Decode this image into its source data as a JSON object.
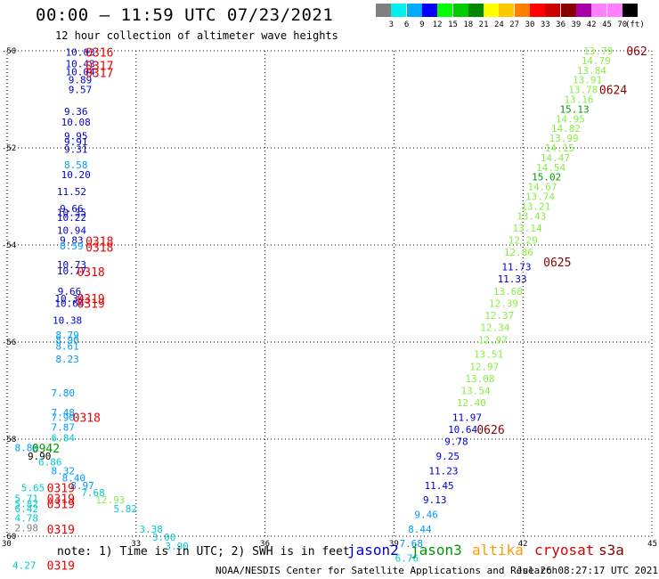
{
  "header": {
    "title": "00:00 – 11:59 UTC 07/23/2021",
    "subtitle": "12 hour collection of altimeter wave heights"
  },
  "colorbar": {
    "unit": "(ft)",
    "labels": [
      "3",
      "6",
      "9",
      "12",
      "15",
      "18",
      "21",
      "24",
      "27",
      "30",
      "33",
      "36",
      "39",
      "42",
      "45",
      "70"
    ],
    "colors": [
      "#808080",
      "#00f0f0",
      "#00aaff",
      "#0000ff",
      "#00ff00",
      "#00cc00",
      "#008800",
      "#ffff00",
      "#ffc800",
      "#ff8000",
      "#ff0000",
      "#cc0000",
      "#880000",
      "#aa00aa",
      "#ff80ff",
      "#ff80ff",
      "#000000"
    ]
  },
  "footer": {
    "note": "note: 1) Time is in UTC; 2) SWH is in feet",
    "credit": "NOAA/NESDIS Center for Satellite Applications and Research",
    "timestamp": "Jul 26 08:27:17 UTC 2021"
  },
  "satellites": [
    {
      "name": "jason2",
      "color": "#0000cc"
    },
    {
      "name": "jason3",
      "color": "#009900"
    },
    {
      "name": "altika",
      "color": "#ff9900"
    },
    {
      "name": "cryosat",
      "color": "#dd0000"
    },
    {
      "name": "s3a",
      "color": "#880000"
    }
  ],
  "chart_data": {
    "type": "scatter",
    "title": "00:00 – 11:59 UTC 07/23/2021",
    "xlim": [
      30,
      45
    ],
    "ylim": [
      -60,
      -50
    ],
    "x_ticks": [
      "30",
      "33",
      "36",
      "39",
      "42",
      "45"
    ],
    "y_ticks": [
      "-50",
      "-52",
      "-54",
      "-56",
      "-58",
      "-60"
    ],
    "grid": true,
    "legend_placement": "bottom",
    "value_labels": [
      {
        "x": 31.7,
        "y": -50.03,
        "t": "10.03",
        "c": "#0000cc"
      },
      {
        "x": 31.7,
        "y": -50.27,
        "t": "10.43",
        "c": "#0000cc"
      },
      {
        "x": 31.7,
        "y": -50.43,
        "t": "10.04",
        "c": "#0000cc"
      },
      {
        "x": 31.7,
        "y": -50.6,
        "t": "9.89",
        "c": "#0000cc"
      },
      {
        "x": 31.7,
        "y": -50.8,
        "t": "9.57",
        "c": "#0000cc"
      },
      {
        "x": 31.6,
        "y": -51.25,
        "t": "9.36",
        "c": "#0000cc"
      },
      {
        "x": 31.6,
        "y": -51.47,
        "t": "10.08",
        "c": "#0000cc"
      },
      {
        "x": 31.6,
        "y": -51.75,
        "t": "9.95",
        "c": "#0000cc"
      },
      {
        "x": 31.6,
        "y": -51.87,
        "t": "9.91",
        "c": "#0000cc"
      },
      {
        "x": 31.6,
        "y": -52.03,
        "t": "9.31",
        "c": "#0000cc"
      },
      {
        "x": 31.6,
        "y": -52.35,
        "t": "8.58",
        "c": "#0099ff"
      },
      {
        "x": 31.6,
        "y": -52.55,
        "t": "10.20",
        "c": "#0000cc"
      },
      {
        "x": 31.5,
        "y": -52.9,
        "t": "11.52",
        "c": "#0000cc"
      },
      {
        "x": 31.5,
        "y": -53.25,
        "t": "9.66",
        "c": "#0000cc"
      },
      {
        "x": 31.5,
        "y": -53.33,
        "t": "10.35",
        "c": "#0000cc"
      },
      {
        "x": 31.5,
        "y": -53.43,
        "t": "10.22",
        "c": "#0000cc"
      },
      {
        "x": 31.5,
        "y": -53.7,
        "t": "10.94",
        "c": "#0000cc"
      },
      {
        "x": 31.5,
        "y": -53.9,
        "t": "9.83",
        "c": "#0000cc"
      },
      {
        "x": 31.5,
        "y": -54.02,
        "t": "8.59",
        "c": "#0099ff"
      },
      {
        "x": 31.5,
        "y": -54.4,
        "t": "10.73",
        "c": "#0000cc"
      },
      {
        "x": 31.5,
        "y": -54.53,
        "t": "10.77",
        "c": "#0000cc"
      },
      {
        "x": 31.45,
        "y": -54.95,
        "t": "9.66",
        "c": "#0000cc"
      },
      {
        "x": 31.45,
        "y": -55.1,
        "t": "10.34",
        "c": "#0000cc"
      },
      {
        "x": 31.45,
        "y": -55.2,
        "t": "10.64",
        "c": "#0000cc"
      },
      {
        "x": 31.4,
        "y": -55.55,
        "t": "10.38",
        "c": "#0000cc"
      },
      {
        "x": 31.4,
        "y": -55.85,
        "t": "8.79",
        "c": "#0099ff"
      },
      {
        "x": 31.4,
        "y": -55.95,
        "t": "8.90",
        "c": "#0099ff"
      },
      {
        "x": 31.4,
        "y": -56.08,
        "t": "8.61",
        "c": "#0099ff"
      },
      {
        "x": 31.4,
        "y": -56.35,
        "t": "8.23",
        "c": "#0099ff"
      },
      {
        "x": 31.3,
        "y": -57.05,
        "t": "7.80",
        "c": "#0099ff"
      },
      {
        "x": 31.3,
        "y": -57.45,
        "t": "7.48",
        "c": "#0099ff"
      },
      {
        "x": 31.3,
        "y": -57.55,
        "t": "7.90",
        "c": "#0099ff"
      },
      {
        "x": 31.3,
        "y": -57.75,
        "t": "7.87",
        "c": "#0099ff"
      },
      {
        "x": 31.3,
        "y": -57.97,
        "t": "6.84",
        "c": "#00cccc"
      },
      {
        "x": 30.45,
        "y": -58.17,
        "t": "8.86",
        "c": "#0099ff"
      },
      {
        "x": 30.75,
        "y": -58.35,
        "t": "9.90",
        "c": "#000000"
      },
      {
        "x": 31.0,
        "y": -58.47,
        "t": "6.86",
        "c": "#00cccc"
      },
      {
        "x": 31.3,
        "y": -58.65,
        "t": "8.32",
        "c": "#0099ff"
      },
      {
        "x": 31.55,
        "y": -58.8,
        "t": "8.40",
        "c": "#0099ff"
      },
      {
        "x": 31.75,
        "y": -58.95,
        "t": "8.97",
        "c": "#0099ff"
      },
      {
        "x": 32.0,
        "y": -59.1,
        "t": "7.68",
        "c": "#00cccc"
      },
      {
        "x": 30.6,
        "y": -59.0,
        "t": "5.65",
        "c": "#00cccc"
      },
      {
        "x": 30.45,
        "y": -59.22,
        "t": "5.71",
        "c": "#00cccc"
      },
      {
        "x": 30.45,
        "y": -59.33,
        "t": "5.82",
        "c": "#00cccc"
      },
      {
        "x": 30.45,
        "y": -59.43,
        "t": "6.42",
        "c": "#00cccc"
      },
      {
        "x": 30.45,
        "y": -59.62,
        "t": "4.78",
        "c": "#00cccc"
      },
      {
        "x": 30.45,
        "y": -59.83,
        "t": "2.98",
        "c": "#808080"
      },
      {
        "x": 30.4,
        "y": -60.6,
        "t": "4.27",
        "c": "#00cccc"
      },
      {
        "x": 32.4,
        "y": -59.25,
        "t": "12.93",
        "c": "#88ee44"
      },
      {
        "x": 32.75,
        "y": -59.43,
        "t": "5.82",
        "c": "#00cccc"
      },
      {
        "x": 33.35,
        "y": -59.85,
        "t": "3.38",
        "c": "#00cccc"
      },
      {
        "x": 33.65,
        "y": -60.02,
        "t": "3.00",
        "c": "#00cccc"
      },
      {
        "x": 33.95,
        "y": -60.2,
        "t": "3.90",
        "c": "#00cccc"
      },
      {
        "x": 43.75,
        "y": -50.0,
        "t": "13.79",
        "c": "#88ee44"
      },
      {
        "x": 43.7,
        "y": -50.2,
        "t": "14.79",
        "c": "#88ee44"
      },
      {
        "x": 43.6,
        "y": -50.4,
        "t": "13.84",
        "c": "#88ee44"
      },
      {
        "x": 43.5,
        "y": -50.6,
        "t": "13.91",
        "c": "#88ee44"
      },
      {
        "x": 43.4,
        "y": -50.8,
        "t": "13.78",
        "c": "#88ee44"
      },
      {
        "x": 43.3,
        "y": -51.0,
        "t": "13.16",
        "c": "#88ee44"
      },
      {
        "x": 43.2,
        "y": -51.2,
        "t": "15.13",
        "c": "#009900"
      },
      {
        "x": 43.1,
        "y": -51.4,
        "t": "14.95",
        "c": "#88ee44"
      },
      {
        "x": 43.0,
        "y": -51.6,
        "t": "14.82",
        "c": "#88ee44"
      },
      {
        "x": 42.95,
        "y": -51.8,
        "t": "13.99",
        "c": "#88ee44"
      },
      {
        "x": 42.85,
        "y": -52.0,
        "t": "14.15",
        "c": "#88ee44"
      },
      {
        "x": 42.75,
        "y": -52.2,
        "t": "14.47",
        "c": "#88ee44"
      },
      {
        "x": 42.65,
        "y": -52.4,
        "t": "14.54",
        "c": "#88ee44"
      },
      {
        "x": 42.55,
        "y": -52.6,
        "t": "15.02",
        "c": "#009900"
      },
      {
        "x": 42.45,
        "y": -52.8,
        "t": "14.67",
        "c": "#88ee44"
      },
      {
        "x": 42.4,
        "y": -53.0,
        "t": "13.74",
        "c": "#88ee44"
      },
      {
        "x": 42.3,
        "y": -53.2,
        "t": "13.21",
        "c": "#88ee44"
      },
      {
        "x": 42.2,
        "y": -53.4,
        "t": "13.43",
        "c": "#88ee44"
      },
      {
        "x": 42.1,
        "y": -53.65,
        "t": "13.14",
        "c": "#88ee44"
      },
      {
        "x": 42.0,
        "y": -53.9,
        "t": "12.29",
        "c": "#88ee44"
      },
      {
        "x": 41.9,
        "y": -54.15,
        "t": "12.86",
        "c": "#88ee44"
      },
      {
        "x": 41.85,
        "y": -54.45,
        "t": "11.73",
        "c": "#0000cc"
      },
      {
        "x": 41.75,
        "y": -54.7,
        "t": "11.33",
        "c": "#0000cc"
      },
      {
        "x": 41.65,
        "y": -54.95,
        "t": "13.68",
        "c": "#88ee44"
      },
      {
        "x": 41.55,
        "y": -55.2,
        "t": "12.39",
        "c": "#88ee44"
      },
      {
        "x": 41.45,
        "y": -55.45,
        "t": "12.37",
        "c": "#88ee44"
      },
      {
        "x": 41.35,
        "y": -55.7,
        "t": "12.34",
        "c": "#88ee44"
      },
      {
        "x": 41.3,
        "y": -55.95,
        "t": "12.97",
        "c": "#88ee44"
      },
      {
        "x": 41.2,
        "y": -56.25,
        "t": "13.51",
        "c": "#88ee44"
      },
      {
        "x": 41.1,
        "y": -56.5,
        "t": "12.97",
        "c": "#88ee44"
      },
      {
        "x": 41.0,
        "y": -56.75,
        "t": "13.08",
        "c": "#88ee44"
      },
      {
        "x": 40.9,
        "y": -57.0,
        "t": "13.54",
        "c": "#88ee44"
      },
      {
        "x": 40.8,
        "y": -57.25,
        "t": "12.40",
        "c": "#88ee44"
      },
      {
        "x": 40.7,
        "y": -57.55,
        "t": "11.97",
        "c": "#0000cc"
      },
      {
        "x": 40.6,
        "y": -57.8,
        "t": "10.64",
        "c": "#0000cc"
      },
      {
        "x": 40.45,
        "y": -58.05,
        "t": "9.78",
        "c": "#0000cc"
      },
      {
        "x": 40.25,
        "y": -58.35,
        "t": "9.25",
        "c": "#0000cc"
      },
      {
        "x": 40.15,
        "y": -58.65,
        "t": "11.23",
        "c": "#0000cc"
      },
      {
        "x": 40.05,
        "y": -58.95,
        "t": "11.45",
        "c": "#0000cc"
      },
      {
        "x": 39.95,
        "y": -59.25,
        "t": "9.13",
        "c": "#0000cc"
      },
      {
        "x": 39.75,
        "y": -59.55,
        "t": "9.46",
        "c": "#0099ff"
      },
      {
        "x": 39.6,
        "y": -59.85,
        "t": "8.44",
        "c": "#0099ff"
      },
      {
        "x": 39.4,
        "y": -60.15,
        "t": "7.68",
        "c": "#0099ff"
      },
      {
        "x": 39.3,
        "y": -60.45,
        "t": "6.76",
        "c": "#00cccc"
      }
    ],
    "track_labels": [
      {
        "x": 32.15,
        "y": -50.03,
        "t": "0316",
        "c": "#ee0000"
      },
      {
        "x": 32.15,
        "y": -50.3,
        "t": "0317",
        "c": "#ee0000"
      },
      {
        "x": 32.15,
        "y": -50.45,
        "t": "0317",
        "c": "#ee0000"
      },
      {
        "x": 32.15,
        "y": -53.92,
        "t": "0318",
        "c": "#ee0000"
      },
      {
        "x": 32.15,
        "y": -54.05,
        "t": "0318",
        "c": "#ee0000"
      },
      {
        "x": 31.95,
        "y": -54.55,
        "t": "0318",
        "c": "#ee0000"
      },
      {
        "x": 31.95,
        "y": -55.1,
        "t": "0319",
        "c": "#ee0000"
      },
      {
        "x": 31.95,
        "y": -55.2,
        "t": "0319",
        "c": "#ee0000"
      },
      {
        "x": 31.85,
        "y": -57.55,
        "t": "0318",
        "c": "#ee0000"
      },
      {
        "x": 30.9,
        "y": -58.18,
        "t": "0942",
        "c": "#009900"
      },
      {
        "x": 31.25,
        "y": -59.0,
        "t": "0319",
        "c": "#ee0000"
      },
      {
        "x": 31.25,
        "y": -59.22,
        "t": "0319",
        "c": "#ee0000"
      },
      {
        "x": 31.25,
        "y": -59.33,
        "t": "0319",
        "c": "#ee0000"
      },
      {
        "x": 31.25,
        "y": -59.85,
        "t": "0319",
        "c": "#ee0000"
      },
      {
        "x": 31.25,
        "y": -60.6,
        "t": "0319",
        "c": "#ee0000"
      },
      {
        "x": 44.65,
        "y": -50.0,
        "t": "062",
        "c": "#880000"
      },
      {
        "x": 44.1,
        "y": -50.8,
        "t": "0624",
        "c": "#880000"
      },
      {
        "x": 42.8,
        "y": -54.35,
        "t": "0625",
        "c": "#880000"
      },
      {
        "x": 41.25,
        "y": -57.8,
        "t": "0626",
        "c": "#880000"
      }
    ]
  }
}
